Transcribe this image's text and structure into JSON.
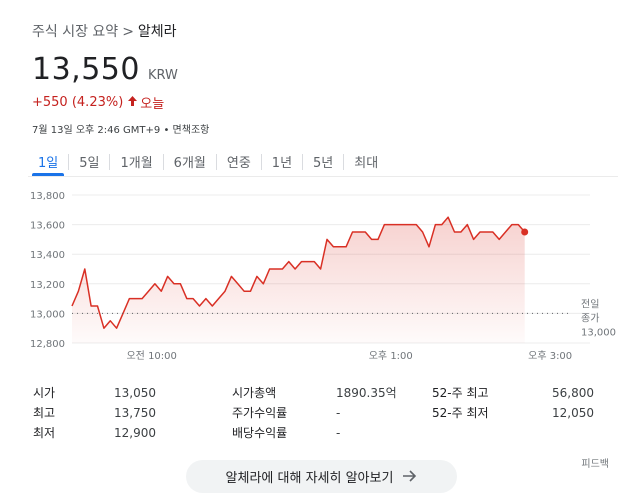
{
  "breadcrumb": {
    "parent": "주식 시장 요약",
    "separator": ">",
    "current": "알체라"
  },
  "quote": {
    "price": "13,550",
    "currency": "KRW",
    "change": "+550 (4.23%)",
    "period": "오늘",
    "timestamp": "7월 13일 오후 2:46 GMT+9 • 면책조항"
  },
  "tabs": [
    {
      "label": "1일",
      "active": true
    },
    {
      "label": "5일"
    },
    {
      "label": "1개월"
    },
    {
      "label": "6개월"
    },
    {
      "label": "연중"
    },
    {
      "label": "1년"
    },
    {
      "label": "5년"
    },
    {
      "label": "최대"
    }
  ],
  "chart_data": {
    "type": "area",
    "y_ticks": [
      "13,800",
      "13,600",
      "13,400",
      "13,200",
      "13,000",
      "12,800"
    ],
    "ylim": [
      12800,
      13800
    ],
    "x_ticks": [
      {
        "label": "오전 10:00",
        "t": 10.0
      },
      {
        "label": "오후 1:00",
        "t": 13.0
      },
      {
        "label": "오후 3:00",
        "t": 15.0
      }
    ],
    "xlim": [
      9.0,
      15.5
    ],
    "previous_close": {
      "label_line1": "전일",
      "label_line2": "종가",
      "value_text": "13,000",
      "value": 13000
    },
    "line_color": "#d93025",
    "fill_color": "#fce8e6",
    "points": [
      [
        9.0,
        13050
      ],
      [
        9.08,
        13150
      ],
      [
        9.16,
        13300
      ],
      [
        9.24,
        13050
      ],
      [
        9.32,
        13050
      ],
      [
        9.4,
        12900
      ],
      [
        9.48,
        12950
      ],
      [
        9.56,
        12900
      ],
      [
        9.64,
        13000
      ],
      [
        9.72,
        13100
      ],
      [
        9.8,
        13100
      ],
      [
        9.88,
        13100
      ],
      [
        9.96,
        13150
      ],
      [
        10.04,
        13200
      ],
      [
        10.12,
        13150
      ],
      [
        10.2,
        13250
      ],
      [
        10.28,
        13200
      ],
      [
        10.36,
        13200
      ],
      [
        10.44,
        13100
      ],
      [
        10.52,
        13100
      ],
      [
        10.6,
        13050
      ],
      [
        10.68,
        13100
      ],
      [
        10.76,
        13050
      ],
      [
        10.84,
        13100
      ],
      [
        10.92,
        13150
      ],
      [
        11.0,
        13250
      ],
      [
        11.08,
        13200
      ],
      [
        11.16,
        13150
      ],
      [
        11.24,
        13150
      ],
      [
        11.32,
        13250
      ],
      [
        11.4,
        13200
      ],
      [
        11.48,
        13300
      ],
      [
        11.56,
        13300
      ],
      [
        11.64,
        13300
      ],
      [
        11.72,
        13350
      ],
      [
        11.8,
        13300
      ],
      [
        11.88,
        13350
      ],
      [
        11.96,
        13350
      ],
      [
        12.04,
        13350
      ],
      [
        12.12,
        13300
      ],
      [
        12.2,
        13500
      ],
      [
        12.28,
        13450
      ],
      [
        12.36,
        13450
      ],
      [
        12.44,
        13450
      ],
      [
        12.52,
        13550
      ],
      [
        12.6,
        13550
      ],
      [
        12.68,
        13550
      ],
      [
        12.76,
        13500
      ],
      [
        12.84,
        13500
      ],
      [
        12.92,
        13600
      ],
      [
        13.0,
        13600
      ],
      [
        13.08,
        13600
      ],
      [
        13.16,
        13600
      ],
      [
        13.24,
        13600
      ],
      [
        13.32,
        13600
      ],
      [
        13.4,
        13550
      ],
      [
        13.48,
        13450
      ],
      [
        13.56,
        13600
      ],
      [
        13.64,
        13600
      ],
      [
        13.72,
        13650
      ],
      [
        13.8,
        13550
      ],
      [
        13.88,
        13550
      ],
      [
        13.96,
        13600
      ],
      [
        14.04,
        13500
      ],
      [
        14.12,
        13550
      ],
      [
        14.2,
        13550
      ],
      [
        14.28,
        13550
      ],
      [
        14.36,
        13500
      ],
      [
        14.44,
        13550
      ],
      [
        14.52,
        13600
      ],
      [
        14.6,
        13600
      ],
      [
        14.68,
        13550
      ]
    ]
  },
  "stats": [
    {
      "label": "시가",
      "value": "13,050"
    },
    {
      "label": "최고",
      "value": "13,750"
    },
    {
      "label": "최저",
      "value": "12,900"
    },
    {
      "label": "시가총액",
      "value": "1890.35억"
    },
    {
      "label": "주가수익률",
      "value": "-"
    },
    {
      "label": "배당수익률",
      "value": "-"
    },
    {
      "label": "52-주 최고",
      "value": "56,800"
    },
    {
      "label": "52-주 최저",
      "value": "12,050"
    }
  ],
  "feedback": "피드백",
  "more_button": {
    "label": "알체라에 대해 자세히 알아보기",
    "icon": "arrow-right-icon"
  }
}
